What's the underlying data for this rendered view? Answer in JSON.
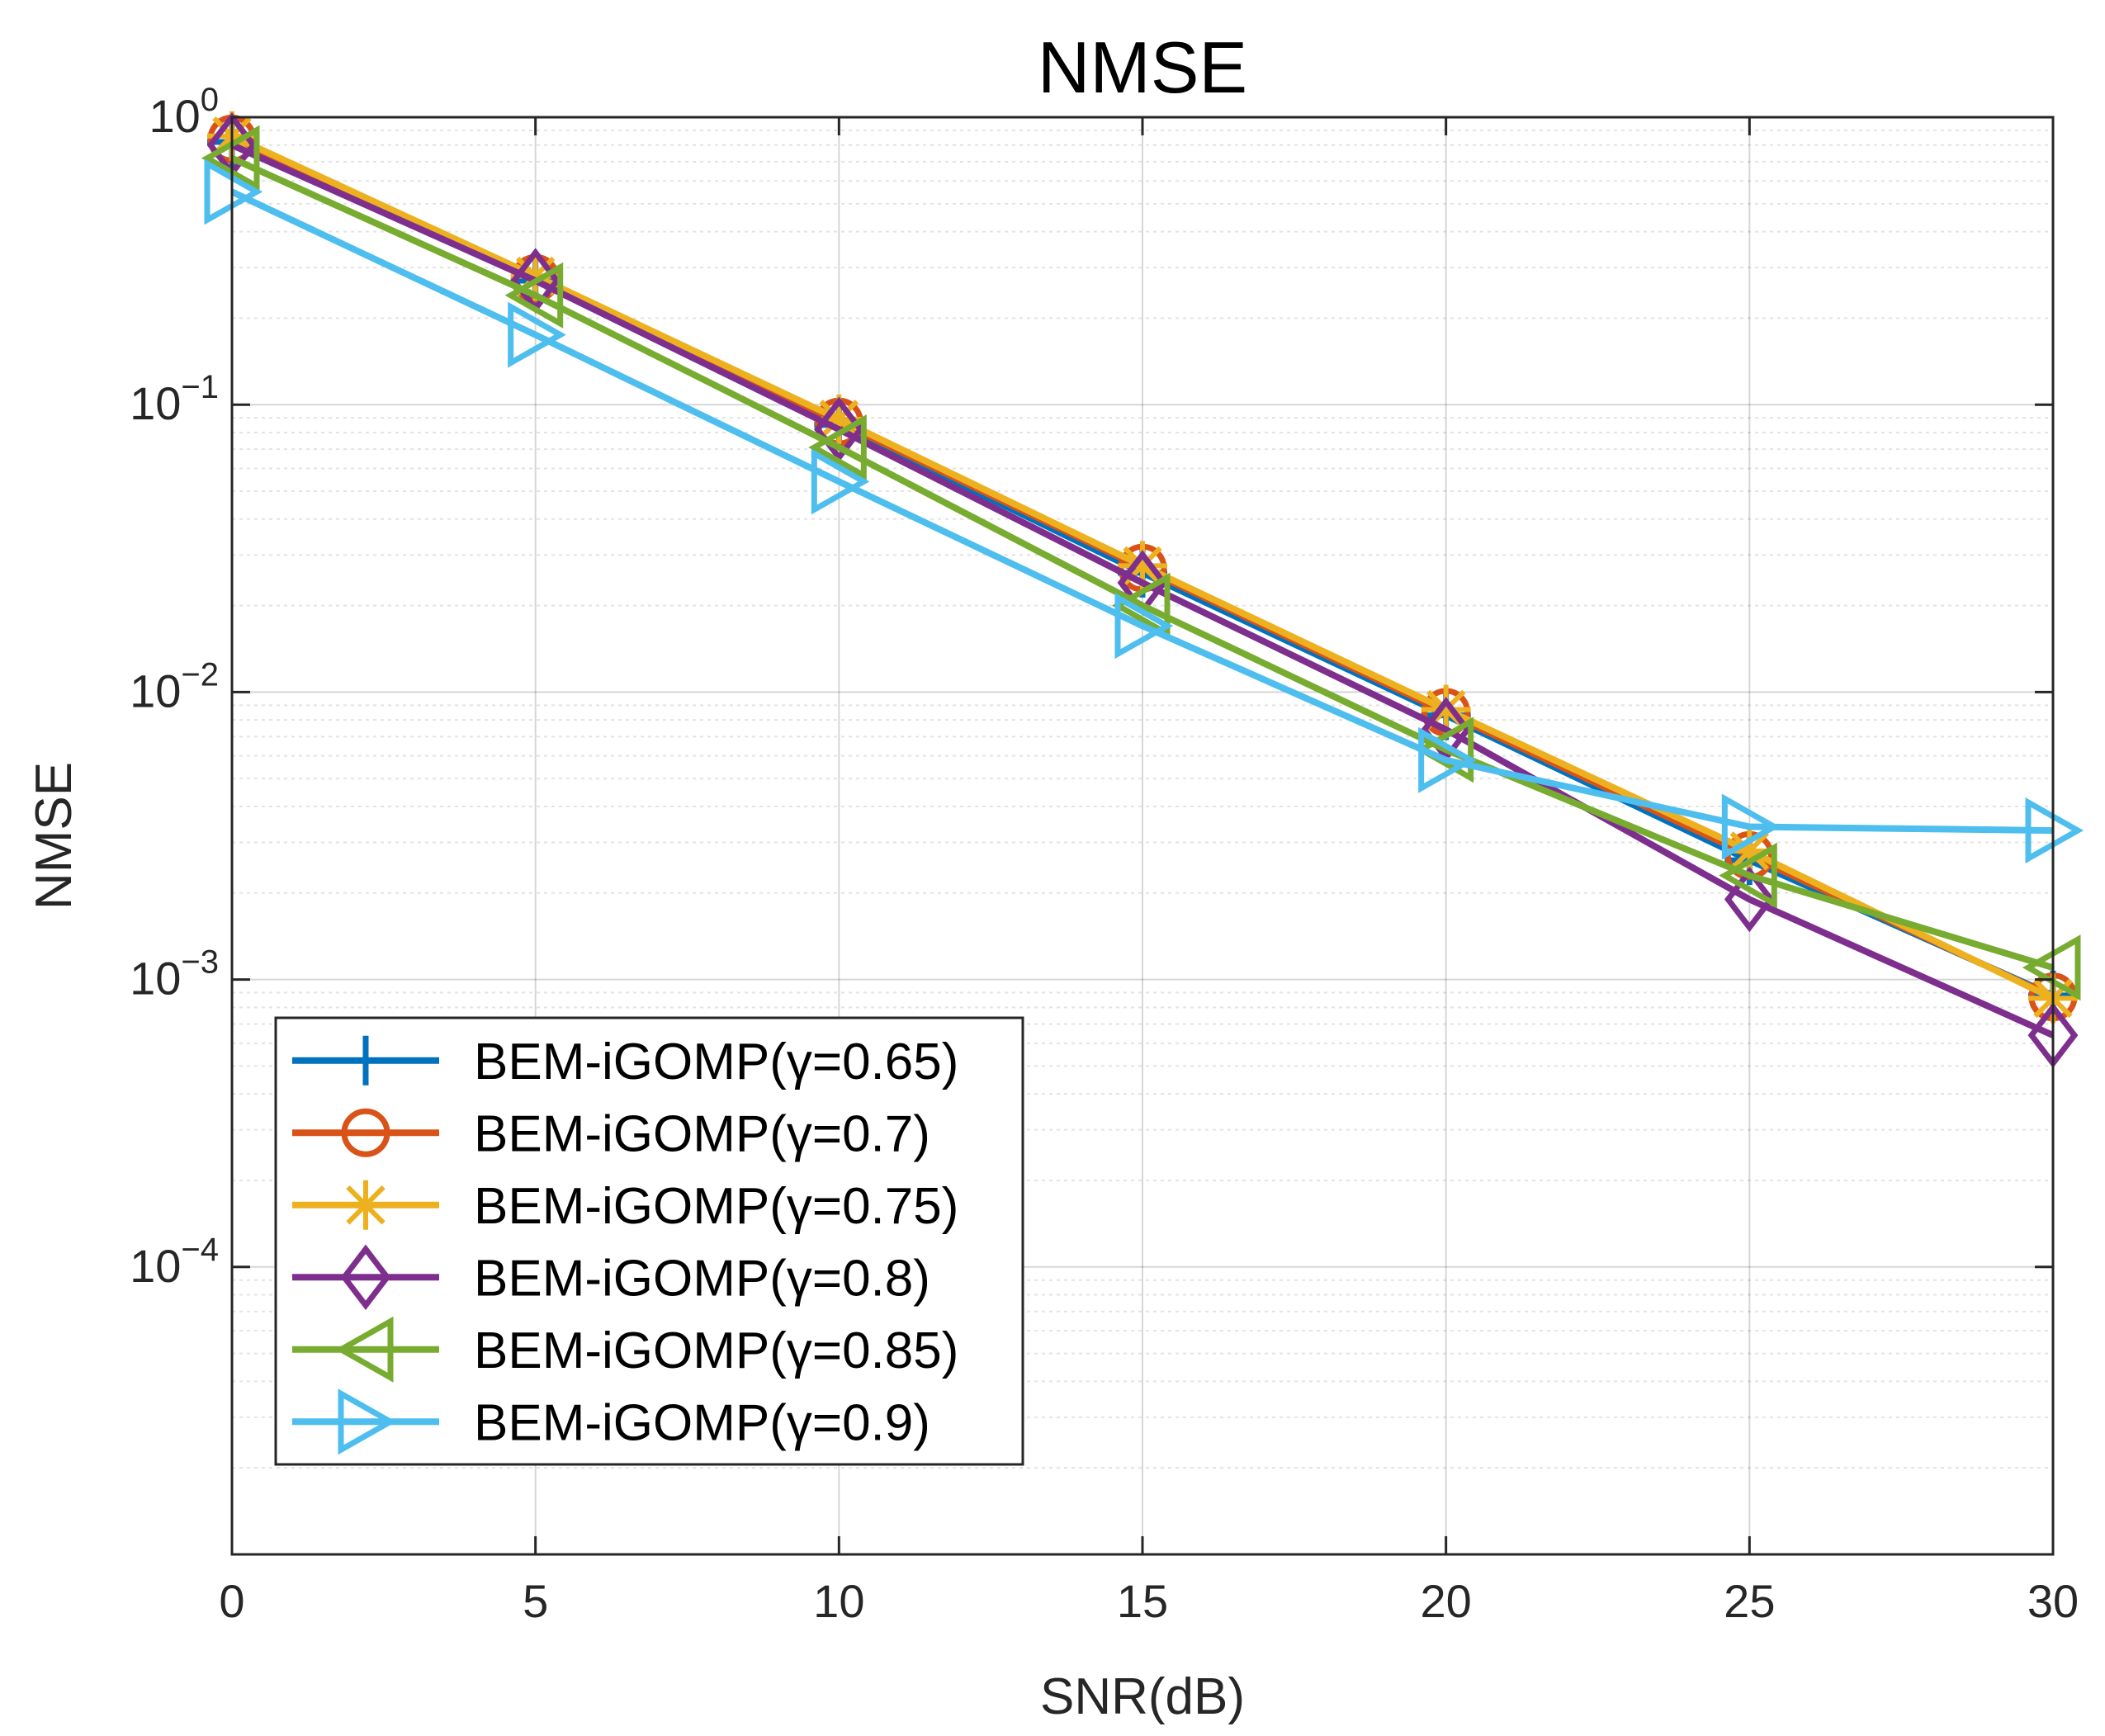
{
  "chart_data": {
    "type": "line",
    "title": "NMSE",
    "xlabel": "SNR(dB)",
    "ylabel": "NMSE",
    "yscale": "log",
    "xlim": [
      0,
      30
    ],
    "ylim": [
      1e-05,
      1
    ],
    "grid": true,
    "x": [
      0,
      5,
      10,
      15,
      20,
      25,
      30
    ],
    "x_ticks": [
      "0",
      "5",
      "10",
      "15",
      "20",
      "25",
      "30"
    ],
    "y_ticks": [
      {
        "value": 1,
        "base": "10",
        "exp": "0"
      },
      {
        "value": 0.1,
        "base": "10",
        "exp": "−1"
      },
      {
        "value": 0.01,
        "base": "10",
        "exp": "−2"
      },
      {
        "value": 0.001,
        "base": "10",
        "exp": "−3"
      },
      {
        "value": 0.0001,
        "base": "10",
        "exp": "−4"
      }
    ],
    "legend_position": "bottom-left",
    "series": [
      {
        "name": "BEM-iGOMP(γ=0.65)",
        "color": "#0072BD",
        "marker": "plus",
        "values": [
          0.82,
          0.27,
          0.085,
          0.026,
          0.0083,
          0.0026,
          0.00088
        ]
      },
      {
        "name": "BEM-iGOMP(γ=0.7)",
        "color": "#D95319",
        "marker": "circle",
        "values": [
          0.84,
          0.275,
          0.087,
          0.027,
          0.0085,
          0.0027,
          0.00087
        ]
      },
      {
        "name": "BEM-iGOMP(γ=0.75)",
        "color": "#EDB120",
        "marker": "asterisk",
        "values": [
          0.86,
          0.28,
          0.089,
          0.0275,
          0.0087,
          0.0028,
          0.00086
        ]
      },
      {
        "name": "BEM-iGOMP(γ=0.8)",
        "color": "#7E2F8E",
        "marker": "diamond",
        "values": [
          0.8,
          0.27,
          0.082,
          0.024,
          0.0074,
          0.0019,
          0.00064
        ]
      },
      {
        "name": "BEM-iGOMP(γ=0.85)",
        "color": "#77AC30",
        "marker": "triangle-left",
        "values": [
          0.72,
          0.24,
          0.071,
          0.02,
          0.0063,
          0.0023,
          0.0011
        ]
      },
      {
        "name": "BEM-iGOMP(γ=0.9)",
        "color": "#4DBEEE",
        "marker": "triangle-right",
        "values": [
          0.55,
          0.175,
          0.054,
          0.017,
          0.0058,
          0.0034,
          0.0033
        ]
      }
    ]
  }
}
